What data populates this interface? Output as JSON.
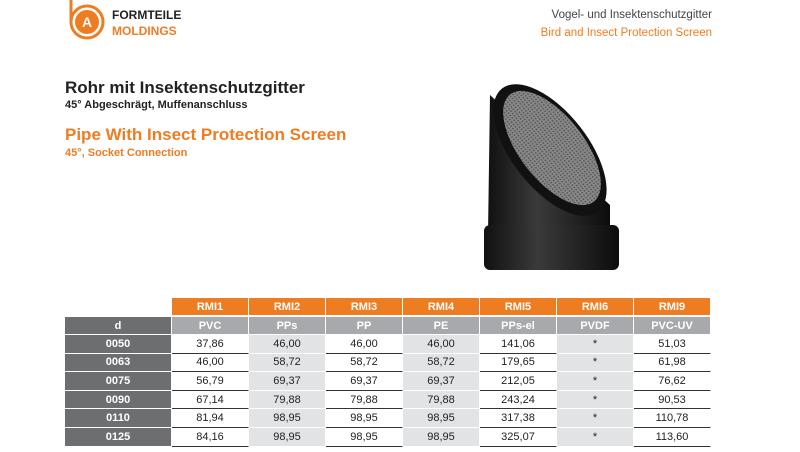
{
  "header": {
    "logo_letter": "A",
    "brand_line1": "FORMTEILE",
    "brand_line2": "MOLDINGS",
    "category_de": "Vogel- und Insektenschutzgitter",
    "category_en": "Bird and Insect Protection Screen"
  },
  "product": {
    "title_de": "Rohr mit Insektenschutzgitter",
    "subtitle_de": "45° Abgeschrägt, Muffenanschluss",
    "title_en": "Pipe With Insect Protection Screen",
    "subtitle_en": "45°, Socket Connection"
  },
  "table": {
    "codes": [
      "RMI1",
      "RMI2",
      "RMI3",
      "RMI4",
      "RMI5",
      "RMI6",
      "RMI9"
    ],
    "corner": "d",
    "materials": [
      "PVC",
      "PPs",
      "PP",
      "PE",
      "PPs-el",
      "PVDF",
      "PVC-UV"
    ],
    "rows": [
      {
        "d": "0050",
        "prices": [
          "37,86",
          "46,00",
          "46,00",
          "46,00",
          "141,06",
          "*",
          "51,03"
        ]
      },
      {
        "d": "0063",
        "prices": [
          "46,00",
          "58,72",
          "58,72",
          "58,72",
          "179,65",
          "*",
          "61,98"
        ]
      },
      {
        "d": "0075",
        "prices": [
          "56,79",
          "69,37",
          "69,37",
          "69,37",
          "212,05",
          "*",
          "76,62"
        ]
      },
      {
        "d": "0090",
        "prices": [
          "67,14",
          "79,88",
          "79,88",
          "79,88",
          "243,24",
          "*",
          "90,53"
        ]
      },
      {
        "d": "0110",
        "prices": [
          "81,94",
          "98,95",
          "98,95",
          "98,95",
          "317,38",
          "*",
          "110,78"
        ]
      },
      {
        "d": "0125",
        "prices": [
          "84,16",
          "98,95",
          "98,95",
          "98,95",
          "325,07",
          "*",
          "113,60"
        ]
      }
    ]
  }
}
